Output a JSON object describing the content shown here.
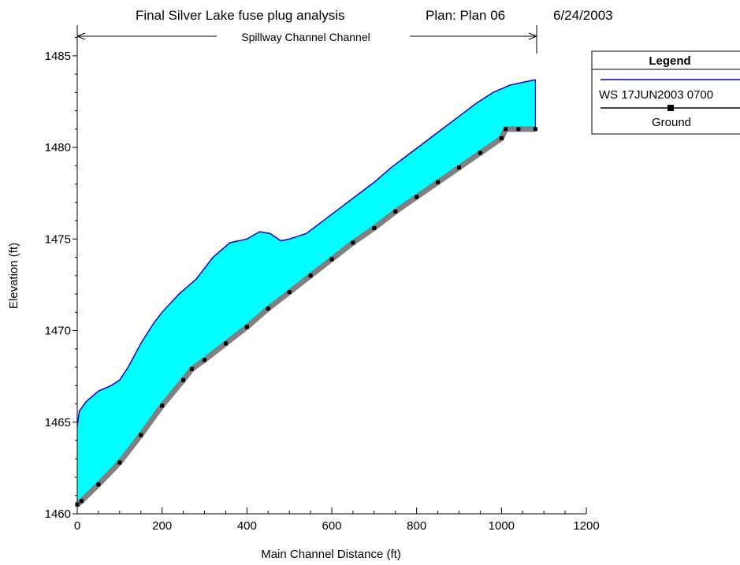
{
  "header": {
    "title": "Final Silver Lake fuse plug analysis",
    "plan": "Plan: Plan 06",
    "date": "6/24/2003"
  },
  "reach_label": "Spillway Channel Channel",
  "legend": {
    "title": "Legend",
    "entries": [
      "WS  17JUN2003 0700",
      "Ground"
    ]
  },
  "colors": {
    "water_fill": "#00ffff",
    "ws_line": "#0000cc",
    "ground_band": "#808080",
    "ground_point": "#000000",
    "axis": "#000000"
  },
  "chart_data": {
    "type": "area",
    "title": "Final Silver Lake fuse plug analysis",
    "xlabel": "Main Channel Distance (ft)",
    "ylabel": "Elevation (ft)",
    "xlim": [
      0,
      1200
    ],
    "ylim": [
      1460,
      1486.5
    ],
    "x_ticks": [
      0,
      200,
      400,
      600,
      800,
      1000,
      1200
    ],
    "y_ticks": [
      1460,
      1465,
      1470,
      1475,
      1480,
      1485
    ],
    "grid": false,
    "legend_position": "top-right",
    "series": [
      {
        "name": "WS  17JUN2003 0700",
        "x": [
          0,
          5,
          20,
          50,
          80,
          100,
          120,
          150,
          180,
          200,
          240,
          280,
          320,
          360,
          400,
          430,
          455,
          480,
          500,
          540,
          580,
          620,
          660,
          700,
          740,
          780,
          820,
          860,
          900,
          940,
          980,
          1020,
          1060,
          1080
        ],
        "y": [
          1464.8,
          1465.6,
          1466.1,
          1466.7,
          1467.0,
          1467.3,
          1468.0,
          1469.3,
          1470.4,
          1471.0,
          1472.0,
          1472.8,
          1474.0,
          1474.8,
          1475.0,
          1475.4,
          1475.3,
          1474.9,
          1475.0,
          1475.3,
          1476.0,
          1476.7,
          1477.4,
          1478.1,
          1478.9,
          1479.6,
          1480.3,
          1481.0,
          1481.7,
          1482.4,
          1483.0,
          1483.4,
          1483.6,
          1483.7
        ]
      },
      {
        "name": "Ground",
        "x": [
          0,
          10,
          50,
          100,
          150,
          200,
          250,
          270,
          300,
          350,
          400,
          450,
          500,
          550,
          600,
          650,
          700,
          750,
          800,
          850,
          900,
          950,
          1000,
          1010,
          1040,
          1080
        ],
        "y": [
          1460.5,
          1460.7,
          1461.6,
          1462.8,
          1464.3,
          1465.9,
          1467.3,
          1467.9,
          1468.4,
          1469.3,
          1470.2,
          1471.2,
          1472.1,
          1473.0,
          1473.9,
          1474.8,
          1475.6,
          1476.5,
          1477.3,
          1478.1,
          1478.9,
          1479.7,
          1480.5,
          1481.0,
          1481.0,
          1481.0
        ]
      }
    ]
  }
}
